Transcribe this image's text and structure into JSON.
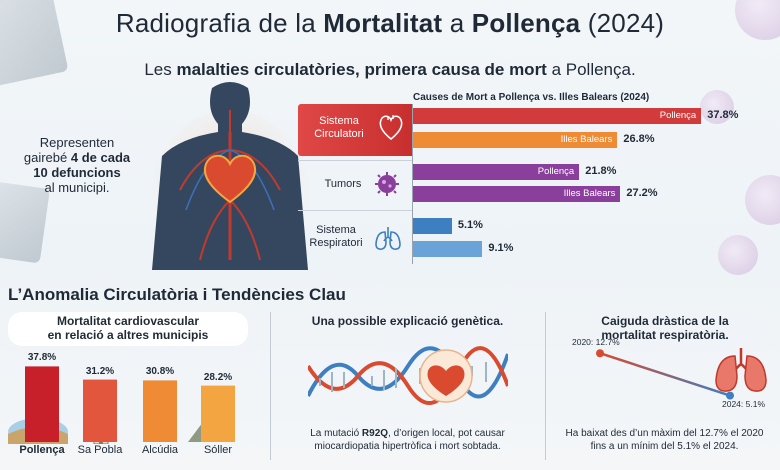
{
  "header": {
    "title_pre": "Radiografia de la ",
    "title_b1": "Mortalitat",
    "title_mid": " a ",
    "title_b2": "Pollença",
    "title_post": " (2024)",
    "subtitle_pre": "Les ",
    "subtitle_b1": "malalties circulatòries, primera causa de mort",
    "subtitle_post": " a Pollença."
  },
  "stat_note": {
    "line1": "Representen",
    "line2_pre": "gairebé ",
    "line2_b": "4 de cada",
    "line3": "10 defuncions",
    "line4": "al municipi."
  },
  "colors": {
    "pollenca_red": "#d23b3b",
    "balears_orange": "#ef8b34",
    "tumors_purple": "#8a3f9c",
    "resp_blue": "#3d7fc0",
    "resp_blue_light": "#6aa3d8"
  },
  "chart_data": [
    {
      "type": "bar",
      "orientation": "horizontal",
      "title": "Causes de Mort a Pollença vs. Illes Balears (2024)",
      "categories": [
        "Sistema Circulatori",
        "Tumors",
        "Sistema Respiratori"
      ],
      "series": [
        {
          "name": "Pollença",
          "values": [
            37.8,
            21.8,
            5.1
          ]
        },
        {
          "name": "Illes Balears",
          "values": [
            26.8,
            27.2,
            9.1
          ]
        }
      ],
      "value_labels": {
        "circ_p": "37.8%",
        "circ_b": "26.8%",
        "tum_p": "21.8%",
        "tum_b": "27.2%",
        "resp_p": "5.1%",
        "resp_b": "9.1%"
      },
      "category_labels": {
        "circ_1": "Sistema",
        "circ_2": "Circulatori",
        "tum": "Tumors",
        "resp_1": "Sistema",
        "resp_2": "Respiratori"
      },
      "max": 40
    },
    {
      "type": "bar",
      "title": "Mortalitat cardiovascular en relació a altres municipis",
      "title_line1": "Mortalitat cardiovascular",
      "title_line2": "en relació a altres municipis",
      "categories": [
        "Pollença",
        "Sa Pobla",
        "Alcúdia",
        "Sóller"
      ],
      "values": [
        37.8,
        31.2,
        30.8,
        28.2
      ],
      "value_labels": [
        "37.8%",
        "31.2%",
        "30.8%",
        "28.2%"
      ],
      "max": 40
    },
    {
      "type": "line",
      "title": "Caiguda dràstica de la mortalitat respiratòria.",
      "title_line1": "Caiguda dràstica de la",
      "title_line2": "mortalitat respiratòria.",
      "x": [
        2020,
        2024
      ],
      "values": [
        12.7,
        5.1
      ],
      "point_labels": [
        "2020: 12.7%",
        "2024: 5.1%"
      ]
    }
  ],
  "section": {
    "title": "L’Anomalia Circulatòria i Tendències Clau"
  },
  "genetics": {
    "title": "Una possible explicació genètica.",
    "caption_l1_pre": "La mutació ",
    "caption_l1_b": "R92Q",
    "caption_l1_post": ", d’origen local, pot causar",
    "caption_l2": "miocardiopatia hipertròfica i mort sobtada."
  },
  "respiratory": {
    "caption_l1": "Ha baixat des d’un màxim del 12.7% el 2020",
    "caption_l2": "fins a un mínim del 5.1% el 2024."
  },
  "icons": [
    "heart-icon",
    "tumor-cell-icon",
    "lungs-icon",
    "dna-helix-icon",
    "lighthouse-icon",
    "tower-icon",
    "mountain-icon"
  ]
}
